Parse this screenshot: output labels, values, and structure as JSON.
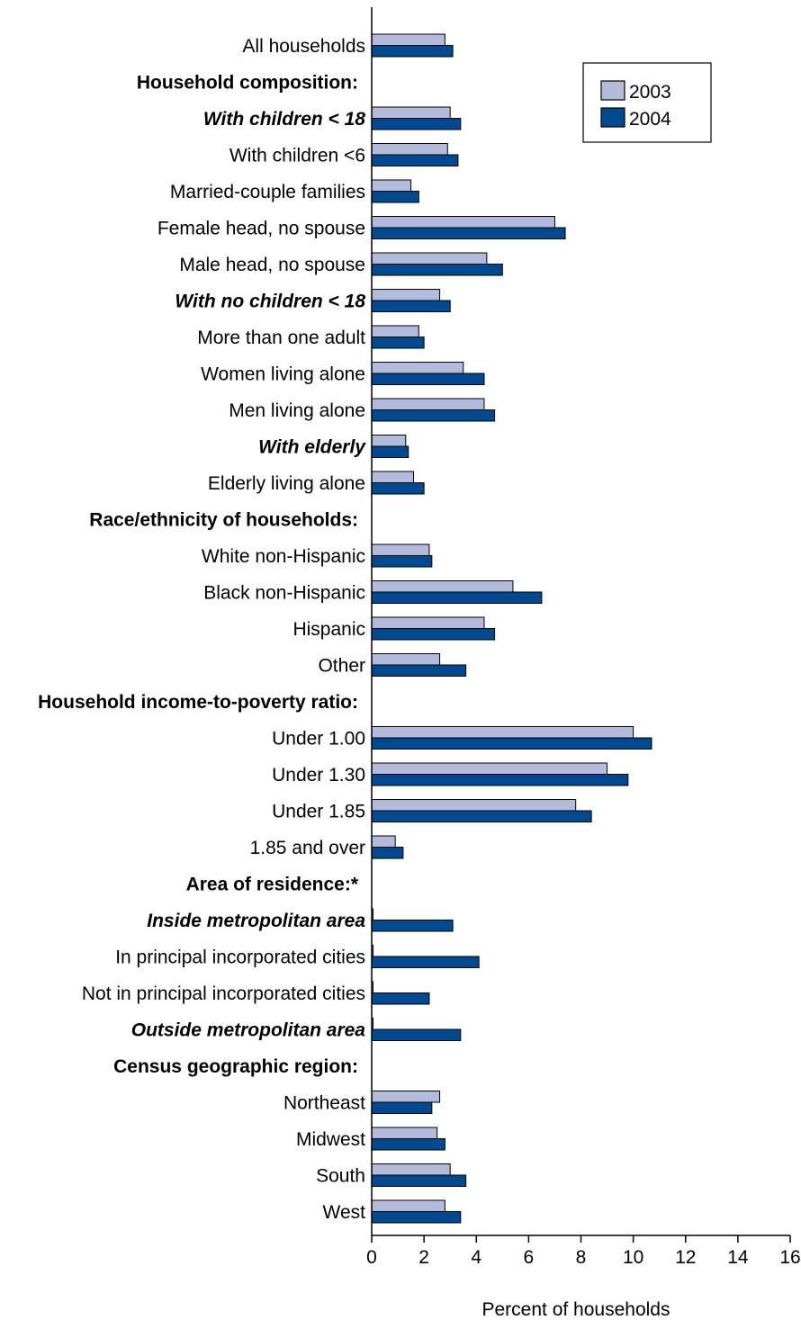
{
  "chart_data": {
    "type": "bar",
    "orientation": "horizontal",
    "xlabel": "Percent of households",
    "xlim": [
      0,
      16
    ],
    "xticks": [
      "0",
      "2",
      "4",
      "6",
      "8",
      "10",
      "12",
      "14",
      "16"
    ],
    "grid": false,
    "legend_position": "top-right",
    "series": [
      {
        "name": "2003",
        "color": "#b3bbdc"
      },
      {
        "name": "2004",
        "color": "#004990"
      }
    ],
    "rows": [
      {
        "label": "All households",
        "style": "normal",
        "v2003": 2.8,
        "v2004": 3.1
      },
      {
        "label": "Household composition:",
        "style": "section"
      },
      {
        "label": "With children < 18",
        "style": "subsection",
        "v2003": 3.0,
        "v2004": 3.4
      },
      {
        "label": "With children <6",
        "style": "normal",
        "v2003": 2.9,
        "v2004": 3.3
      },
      {
        "label": "Married-couple families",
        "style": "normal",
        "v2003": 1.5,
        "v2004": 1.8
      },
      {
        "label": "Female head, no spouse",
        "style": "normal",
        "v2003": 7.0,
        "v2004": 7.4
      },
      {
        "label": "Male head, no spouse",
        "style": "normal",
        "v2003": 4.4,
        "v2004": 5.0
      },
      {
        "label": "With no children < 18",
        "style": "subsection",
        "v2003": 2.6,
        "v2004": 3.0
      },
      {
        "label": "More than one adult",
        "style": "normal",
        "v2003": 1.8,
        "v2004": 2.0
      },
      {
        "label": "Women living alone",
        "style": "normal",
        "v2003": 3.5,
        "v2004": 4.3
      },
      {
        "label": "Men living alone",
        "style": "normal",
        "v2003": 4.3,
        "v2004": 4.7
      },
      {
        "label": "With elderly",
        "style": "subsection",
        "v2003": 1.3,
        "v2004": 1.4
      },
      {
        "label": "Elderly living alone",
        "style": "normal",
        "v2003": 1.6,
        "v2004": 2.0
      },
      {
        "label": "Race/ethnicity of households:",
        "style": "section"
      },
      {
        "label": "White non-Hispanic",
        "style": "normal",
        "v2003": 2.2,
        "v2004": 2.3
      },
      {
        "label": "Black non-Hispanic",
        "style": "normal",
        "v2003": 5.4,
        "v2004": 6.5
      },
      {
        "label": "Hispanic",
        "style": "normal",
        "v2003": 4.3,
        "v2004": 4.7
      },
      {
        "label": "Other",
        "style": "normal",
        "v2003": 2.6,
        "v2004": 3.6
      },
      {
        "label": "Household income-to-poverty ratio:",
        "style": "section"
      },
      {
        "label": "Under 1.00",
        "style": "normal",
        "v2003": 10.0,
        "v2004": 10.7
      },
      {
        "label": "Under 1.30",
        "style": "normal",
        "v2003": 9.0,
        "v2004": 9.8
      },
      {
        "label": "Under 1.85",
        "style": "normal",
        "v2003": 7.8,
        "v2004": 8.4
      },
      {
        "label": "1.85 and over",
        "style": "normal",
        "v2003": 0.9,
        "v2004": 1.2
      },
      {
        "label": "Area of residence:*",
        "style": "section"
      },
      {
        "label": "Inside metropolitan area",
        "style": "subsection",
        "v2003": 0,
        "v2004": 3.1
      },
      {
        "label": "In principal incorporated cities",
        "style": "normal",
        "v2003": 0,
        "v2004": 4.1
      },
      {
        "label": "Not in principal incorporated cities",
        "style": "normal",
        "v2003": 0,
        "v2004": 2.2
      },
      {
        "label": "Outside metropolitan area",
        "style": "subsection",
        "v2003": 0,
        "v2004": 3.4
      },
      {
        "label": "Census geographic region:",
        "style": "section"
      },
      {
        "label": "Northeast",
        "style": "normal",
        "v2003": 2.6,
        "v2004": 2.3
      },
      {
        "label": "Midwest",
        "style": "normal",
        "v2003": 2.5,
        "v2004": 2.8
      },
      {
        "label": "South",
        "style": "normal",
        "v2003": 3.0,
        "v2004": 3.6
      },
      {
        "label": "West",
        "style": "normal",
        "v2003": 2.8,
        "v2004": 3.4
      }
    ]
  }
}
